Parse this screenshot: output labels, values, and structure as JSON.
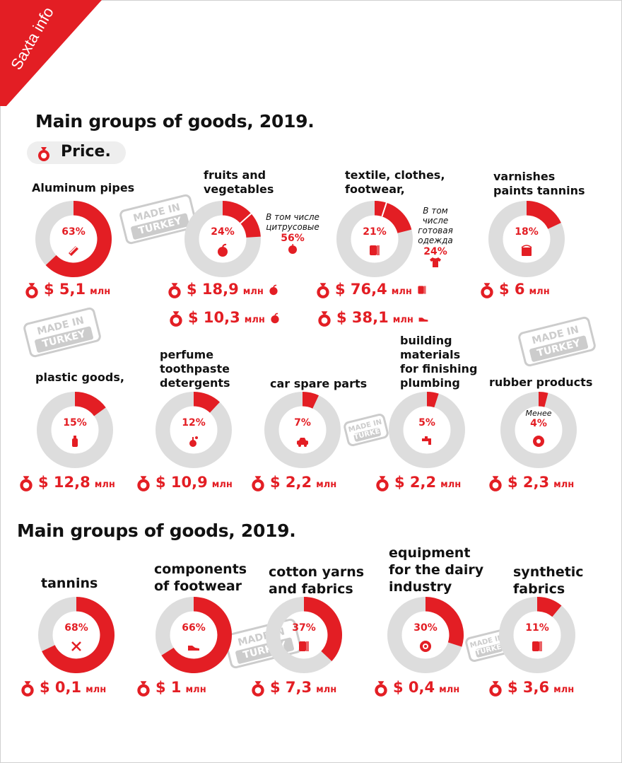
{
  "brand": {
    "label": "Saxta info",
    "color": "#e31e24"
  },
  "colors": {
    "accent": "#e31e24",
    "ring": "#dddddd"
  },
  "section1": {
    "title": "Main groups of goods, 2019.",
    "price_label": "Price."
  },
  "section2": {
    "title": "Main groups of goods, 2019."
  },
  "watermark": {
    "line1": "MADE IN",
    "line2": "TURKEY"
  },
  "notes": {
    "fruits": {
      "line1": "В том числе",
      "line2": "цитрусовые",
      "pct": "56%"
    },
    "textile": {
      "line1": "В том",
      "line2": "числе",
      "line3": "готовая",
      "line4": "одежда",
      "pct": "24%"
    },
    "rubber": {
      "text": "Менее"
    }
  },
  "chart_data": [
    {
      "type": "pie",
      "name": "Aluminum pipes",
      "label_lines": [
        "Aluminum pipes"
      ],
      "percent": 63,
      "percent_label": "63%",
      "price": "$ 5,1",
      "unit": "млн",
      "icon": "pipe-icon"
    },
    {
      "type": "pie",
      "name": "fruits and vegetables",
      "label_lines": [
        "fruits and",
        "vegetables"
      ],
      "percent": 24,
      "percent_label": "24%",
      "sub_percent": 56,
      "price": "$ 18,9",
      "unit": "млн",
      "icon": "apple-icon",
      "extra_price": "$ 10,3",
      "extra_unit": "млн"
    },
    {
      "type": "pie",
      "name": "textile, clothes, footwear,",
      "label_lines": [
        "textile, clothes,",
        "footwear,"
      ],
      "percent": 21,
      "percent_label": "21%",
      "sub_percent": 24,
      "price": "$ 76,4",
      "unit": "млн",
      "icon": "fabric-icon",
      "extra_price": "$ 38,1",
      "extra_unit": "млн"
    },
    {
      "type": "pie",
      "name": "varnishes paints tannins",
      "label_lines": [
        "varnishes",
        "paints tannins"
      ],
      "percent": 18,
      "percent_label": "18%",
      "price": "$ 6",
      "unit": "млн",
      "icon": "paint-can-icon"
    },
    {
      "type": "pie",
      "name": "plastic goods,",
      "label_lines": [
        "plastic goods,"
      ],
      "percent": 15,
      "percent_label": "15%",
      "price": "$ 12,8",
      "unit": "млн",
      "icon": "bottle-icon"
    },
    {
      "type": "pie",
      "name": "perfume toothpaste detergents",
      "label_lines": [
        "perfume",
        "toothpaste",
        "detergents"
      ],
      "percent": 12,
      "percent_label": "12%",
      "price": "$ 10,9",
      "unit": "млн",
      "icon": "perfume-icon"
    },
    {
      "type": "pie",
      "name": "car spare parts",
      "label_lines": [
        "car spare parts"
      ],
      "percent": 7,
      "percent_label": "7%",
      "price": "$ 2,2",
      "unit": "млн",
      "icon": "car-icon"
    },
    {
      "type": "pie",
      "name": "building materials for finishing plumbing",
      "label_lines": [
        "building",
        "materials",
        "for finishing",
        "plumbing"
      ],
      "percent": 5,
      "percent_label": "5%",
      "price": "$ 2,2",
      "unit": "млн",
      "icon": "faucet-icon"
    },
    {
      "type": "pie",
      "name": "rubber products",
      "label_lines": [
        "rubber products"
      ],
      "percent": 4,
      "percent_label": "4%",
      "price": "$ 2,3",
      "unit": "млн",
      "icon": "tire-icon"
    },
    {
      "type": "pie",
      "name": "tannins",
      "label_lines": [
        "tannins"
      ],
      "percent": 68,
      "percent_label": "68%",
      "price": "$ 0,1",
      "unit": "млн",
      "icon": "tools-icon"
    },
    {
      "type": "pie",
      "name": "components of footwear",
      "label_lines": [
        "components",
        "of footwear"
      ],
      "percent": 66,
      "percent_label": "66%",
      "price": "$ 1",
      "unit": "млн",
      "icon": "shoe-icon"
    },
    {
      "type": "pie",
      "name": "cotton yarns and fabrics",
      "label_lines": [
        "cotton yarns",
        "and fabrics"
      ],
      "percent": 37,
      "percent_label": "37%",
      "price": "$ 7,3",
      "unit": "млн",
      "icon": "fabric-icon"
    },
    {
      "type": "pie",
      "name": "equipment for the dairy industry",
      "label_lines": [
        "equipment",
        "for the dairy",
        "industry"
      ],
      "percent": 30,
      "percent_label": "30%",
      "price": "$ 0,4",
      "unit": "млн",
      "icon": "gear-icon"
    },
    {
      "type": "pie",
      "name": "synthetic fabrics",
      "label_lines": [
        "synthetic",
        "fabrics"
      ],
      "percent": 11,
      "percent_label": "11%",
      "price": "$ 3,6",
      "unit": "млн",
      "icon": "fabric-icon"
    }
  ]
}
